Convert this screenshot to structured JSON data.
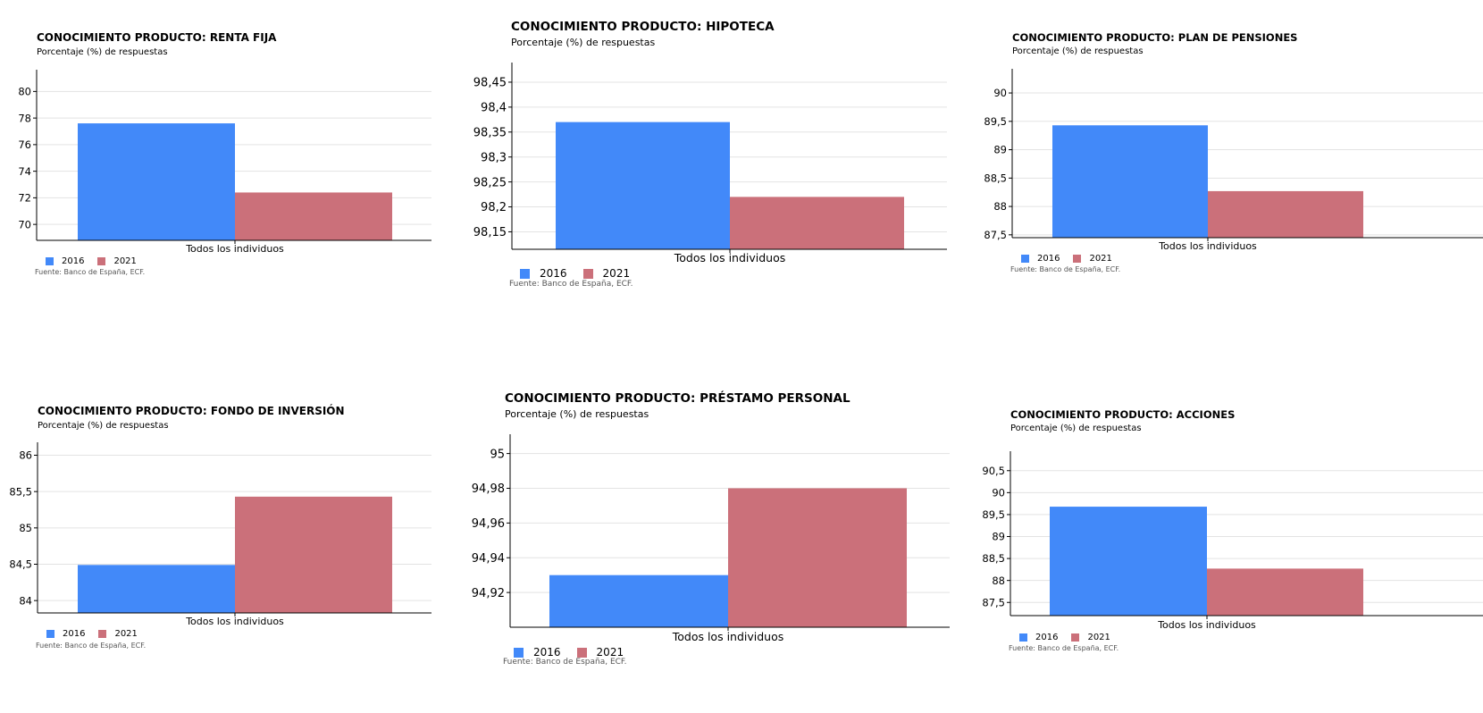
{
  "colors": {
    "y2016": "#4289f9",
    "y2021": "#cb707a",
    "grid": "#e3e3e3",
    "axis": "#000000"
  },
  "legend": [
    "2016",
    "2021"
  ],
  "category": "Todos los individuos",
  "source": "Fuente: Banco de España, ECF.",
  "subtitle": "Porcentaje (%) de respuestas",
  "chart_data": [
    {
      "type": "bar",
      "title": "CONOCIMIENTO PRODUCTO: RENTA FIJA",
      "subtitle": "Porcentaje (%) de respuestas",
      "categories": [
        "Todos los individuos"
      ],
      "series": [
        {
          "name": "2016",
          "values": [
            77.6
          ]
        },
        {
          "name": "2021",
          "values": [
            72.4
          ]
        }
      ],
      "ylim": [
        68.8,
        81.1
      ],
      "yticks": [
        70,
        72,
        74,
        76,
        78,
        80
      ],
      "ytick_labels": [
        "70",
        "72",
        "74",
        "76",
        "78",
        "80"
      ],
      "legend": "bottom-left"
    },
    {
      "type": "bar",
      "title": "CONOCIMIENTO PRODUCTO: HIPOTECA",
      "subtitle": "Porcentaje (%) de respuestas",
      "categories": [
        "Todos los individuos"
      ],
      "series": [
        {
          "name": "2016",
          "values": [
            98.37
          ]
        },
        {
          "name": "2021",
          "values": [
            98.22
          ]
        }
      ],
      "ylim": [
        98.115,
        98.475
      ],
      "yticks": [
        98.15,
        98.2,
        98.25,
        98.3,
        98.35,
        98.4,
        98.45
      ],
      "ytick_labels": [
        "98,15",
        "98,2",
        "98,25",
        "98,3",
        "98,35",
        "98,4",
        "98,45"
      ],
      "legend": "bottom-left"
    },
    {
      "type": "bar",
      "title": "CONOCIMIENTO PRODUCTO: PLAN DE PENSIONES",
      "subtitle": "Porcentaje (%) de respuestas",
      "categories": [
        "Todos los individuos"
      ],
      "series": [
        {
          "name": "2016",
          "values": [
            89.43
          ]
        },
        {
          "name": "2021",
          "values": [
            88.27
          ]
        }
      ],
      "ylim": [
        87.45,
        90.3
      ],
      "yticks": [
        87.5,
        88,
        88.5,
        89,
        89.5,
        90
      ],
      "ytick_labels": [
        "87,5",
        "88",
        "88,5",
        "89",
        "89,5",
        "90"
      ],
      "legend": "bottom-left"
    },
    {
      "type": "bar",
      "title": "CONOCIMIENTO PRODUCTO: FONDO DE INVERSIÓN",
      "subtitle": "Porcentaje (%) de respuestas",
      "categories": [
        "Todos los individuos"
      ],
      "series": [
        {
          "name": "2016",
          "values": [
            84.49
          ]
        },
        {
          "name": "2021",
          "values": [
            85.43
          ]
        }
      ],
      "ylim": [
        83.83,
        86.08
      ],
      "yticks": [
        84,
        84.5,
        85,
        85.5,
        86
      ],
      "ytick_labels": [
        "84",
        "84,5",
        "85",
        "85,5",
        "86"
      ],
      "legend": "bottom-left"
    },
    {
      "type": "bar",
      "title": "CONOCIMIENTO PRODUCTO: PRÉSTAMO PERSONAL",
      "subtitle": "Porcentaje (%) de respuestas",
      "categories": [
        "Todos los individuos"
      ],
      "series": [
        {
          "name": "2016",
          "values": [
            94.93
          ]
        },
        {
          "name": "2021",
          "values": [
            94.98
          ]
        }
      ],
      "ylim": [
        94.9,
        95.007
      ],
      "yticks": [
        94.92,
        94.94,
        94.96,
        94.98,
        95
      ],
      "ytick_labels": [
        "94,92",
        "94,94",
        "94,96",
        "94,98",
        "95"
      ],
      "legend": "bottom-left"
    },
    {
      "type": "bar",
      "title": "CONOCIMIENTO PRODUCTO: ACCIONES",
      "subtitle": "Porcentaje (%) de respuestas",
      "categories": [
        "Todos los individuos"
      ],
      "series": [
        {
          "name": "2016",
          "values": [
            89.68
          ]
        },
        {
          "name": "2021",
          "values": [
            88.27
          ]
        }
      ],
      "ylim": [
        87.2,
        90.78
      ],
      "yticks": [
        87.5,
        88,
        88.5,
        89,
        89.5,
        90,
        90.5
      ],
      "ytick_labels": [
        "87,5",
        "88",
        "88,5",
        "89",
        "89,5",
        "90",
        "90,5"
      ],
      "legend": "bottom-left"
    }
  ]
}
